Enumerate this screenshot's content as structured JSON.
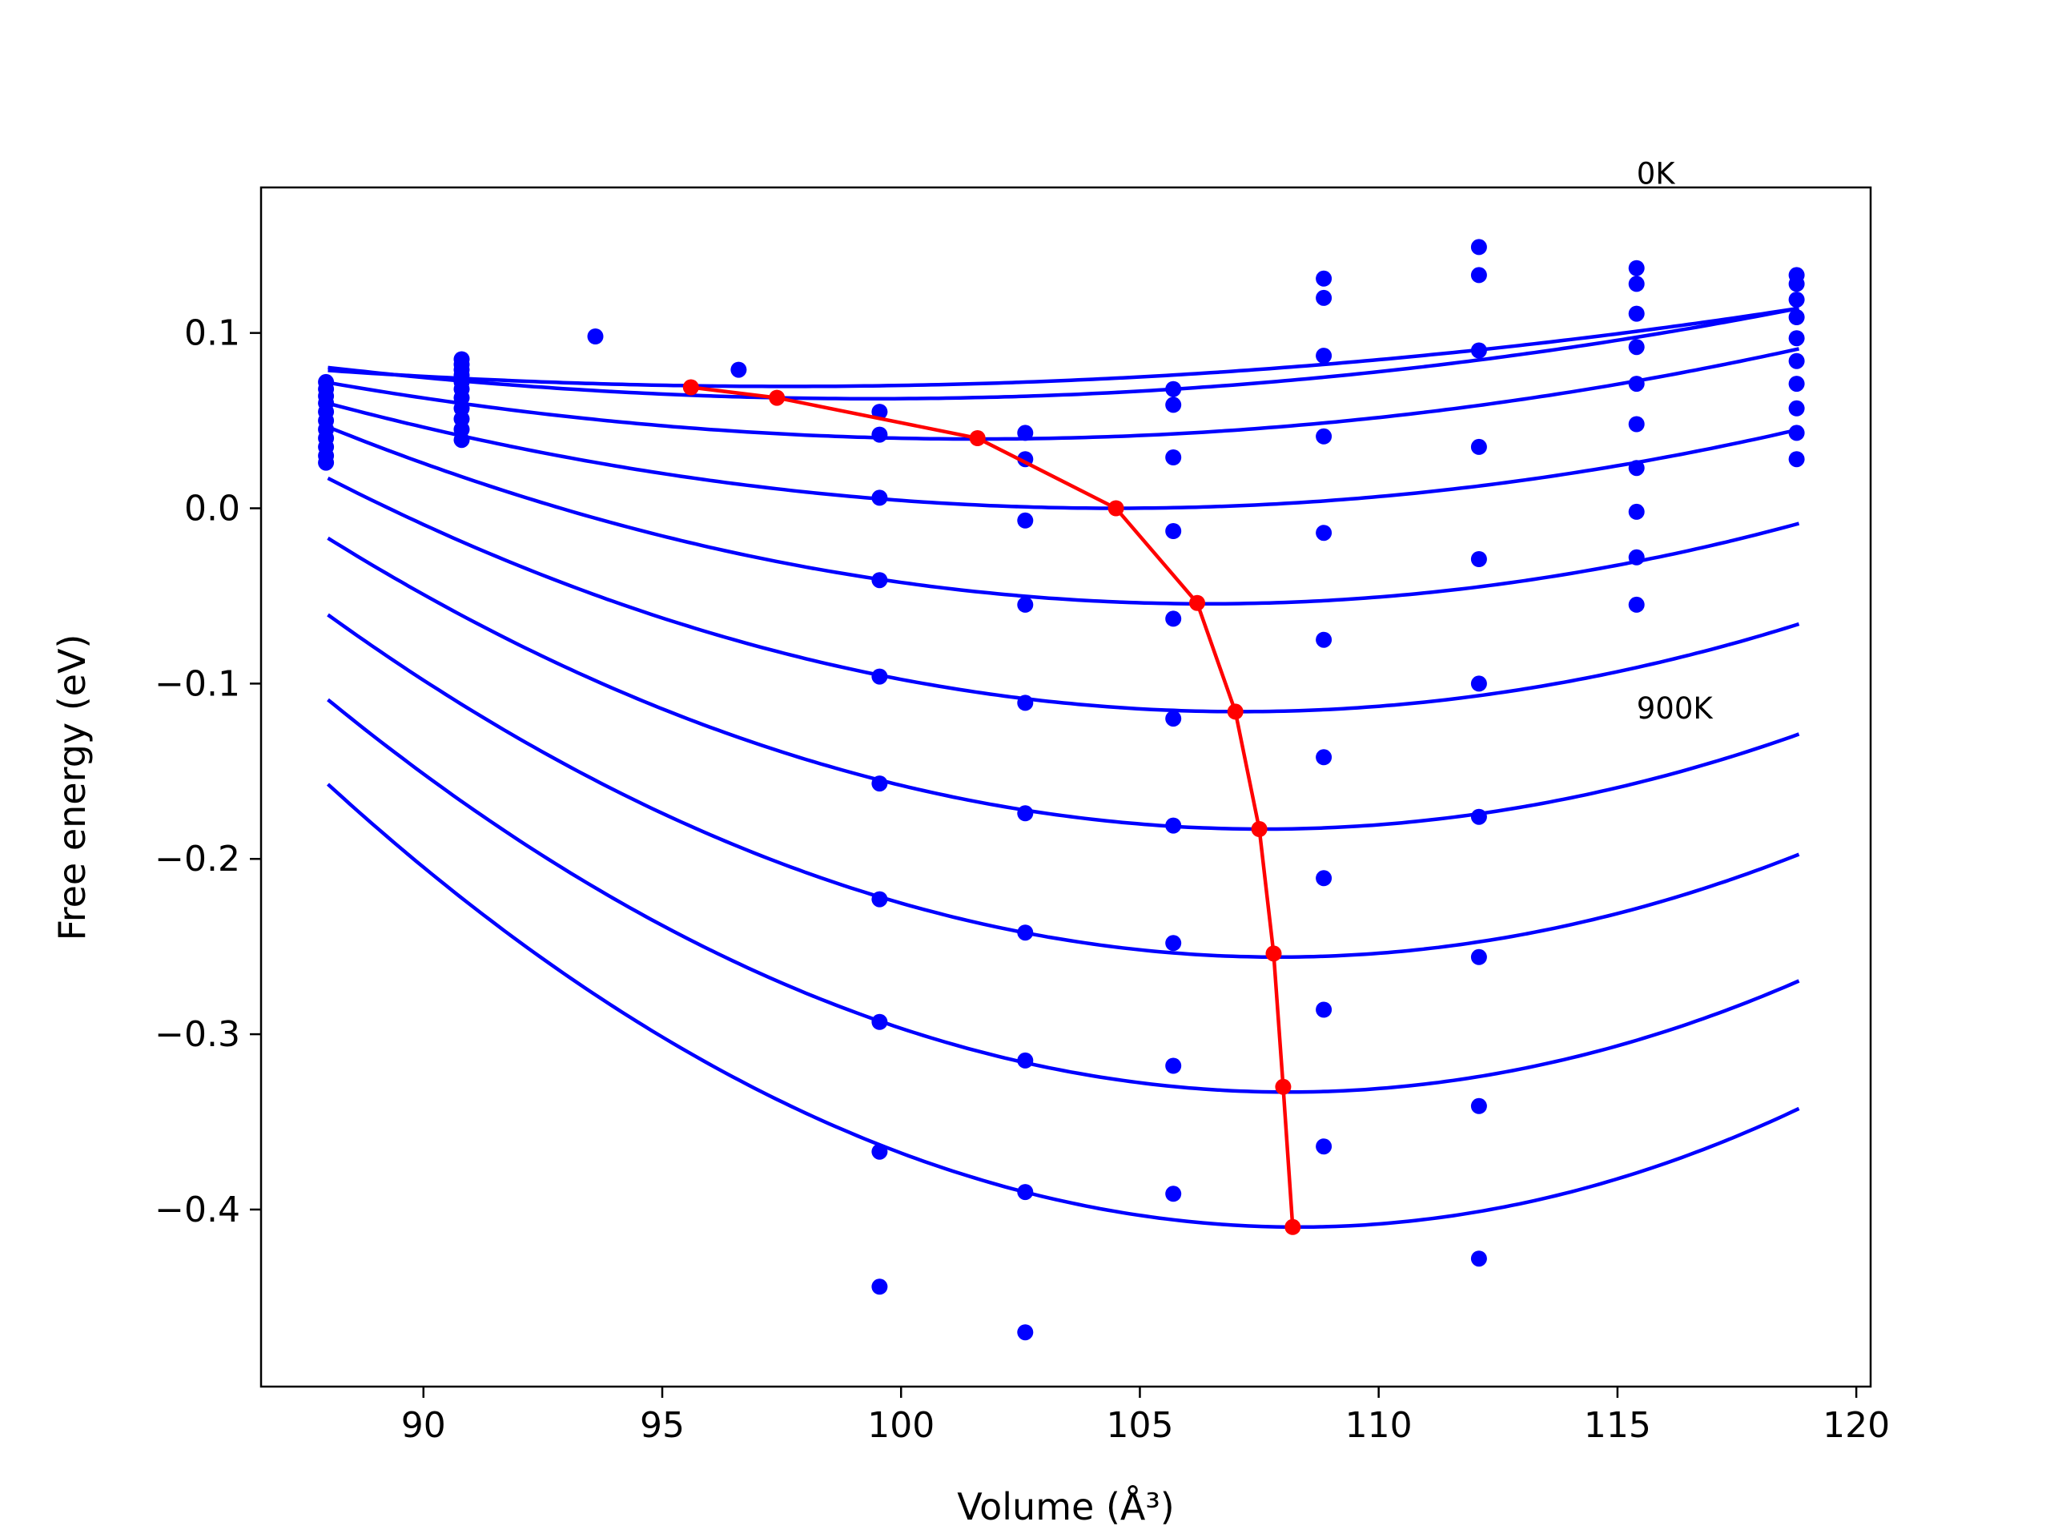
{
  "chart_data": {
    "type": "line",
    "title": "",
    "xlabel": "Volume (Å³)",
    "ylabel": "Free energy (eV)",
    "xlim": [
      86.6,
      120.3
    ],
    "ylim": [
      -0.501,
      0.183
    ],
    "x_ticks": [
      90,
      95,
      100,
      105,
      110,
      115,
      120
    ],
    "x_tick_labels": [
      "90",
      "95",
      "100",
      "105",
      "110",
      "115",
      "120"
    ],
    "y_ticks": [
      -0.4,
      -0.3,
      -0.2,
      -0.1,
      0.0,
      0.1
    ],
    "y_tick_labels": [
      "−0.4",
      "−0.3",
      "−0.2",
      "−0.1",
      "0.0",
      "0.1"
    ],
    "grid": false,
    "annotations": [
      {
        "text": "0K",
        "x": 115.4,
        "y": 0.185
      },
      {
        "text": "900K",
        "x": 115.4,
        "y": -0.12
      }
    ],
    "colors": {
      "fit_curves": "#0000ff",
      "data_points": "#0000ff",
      "equilibrium": "#ff0000"
    },
    "fit_curve_x_range": [
      88.0,
      118.8
    ],
    "fit_curves": [
      {
        "a": 9.92e-05,
        "v0": 97.6,
        "e0": 0.0695
      },
      {
        "a": 0.000137,
        "v0": 99.4,
        "e0": 0.0625
      },
      {
        "a": 0.000174,
        "v0": 101.6,
        "e0": 0.0395
      },
      {
        "a": 0.00022,
        "v0": 104.5,
        "e0": 0.0
      },
      {
        "a": 0.000298,
        "v0": 106.4,
        "e0": -0.0545
      },
      {
        "a": 0.000365,
        "v0": 107.1,
        "e0": -0.116
      },
      {
        "a": 0.000432,
        "v0": 107.6,
        "e0": -0.183
      },
      {
        "a": 0.000493,
        "v0": 107.9,
        "e0": -0.256
      },
      {
        "a": 0.000554,
        "v0": 108.1,
        "e0": -0.333
      },
      {
        "a": 0.000613,
        "v0": 108.3,
        "e0": -0.41
      }
    ],
    "scatter_series": [
      {
        "x": 87.96,
        "y": [
          0.072,
          0.068,
          0.064,
          0.06,
          0.055,
          0.05,
          0.045,
          0.04,
          0.035,
          0.03,
          0.026
        ]
      },
      {
        "x": 90.8,
        "y": [
          0.085,
          0.082,
          0.079,
          0.076,
          0.072,
          0.068,
          0.063,
          0.057,
          0.051,
          0.045,
          0.039
        ]
      },
      {
        "x": 93.6,
        "y": [
          0.098
        ]
      },
      {
        "x": 96.6,
        "y": [
          0.079
        ]
      },
      {
        "x": 99.55,
        "y": [
          0.055,
          0.042,
          0.006,
          -0.041,
          -0.096,
          -0.157,
          -0.223,
          -0.293,
          -0.367,
          -0.444
        ]
      },
      {
        "x": 102.6,
        "y": [
          0.043,
          0.028,
          -0.007,
          -0.055,
          -0.111,
          -0.174,
          -0.242,
          -0.315,
          -0.39,
          -0.47
        ]
      },
      {
        "x": 105.7,
        "y": [
          0.068,
          0.059,
          0.029,
          -0.013,
          -0.063,
          -0.12,
          -0.181,
          -0.248,
          -0.318,
          -0.391
        ]
      },
      {
        "x": 108.85,
        "y": [
          0.131,
          0.12,
          0.087,
          0.041,
          -0.014,
          -0.075,
          -0.142,
          -0.211,
          -0.286,
          -0.364
        ]
      },
      {
        "x": 112.1,
        "y": [
          0.149,
          0.133,
          0.09,
          0.035,
          -0.029,
          -0.1,
          -0.176,
          -0.256,
          -0.341,
          -0.428
        ]
      },
      {
        "x": 115.4,
        "y": [
          0.137,
          0.128,
          0.111,
          0.092,
          0.071,
          0.048,
          0.023,
          -0.002,
          -0.028,
          -0.055
        ]
      },
      {
        "x": 118.75,
        "y": [
          0.133,
          0.128,
          0.119,
          0.109,
          0.097,
          0.084,
          0.071,
          0.057,
          0.043,
          0.028
        ]
      }
    ],
    "equilibrium_line": {
      "x": [
        95.6,
        97.4,
        101.6,
        104.5,
        106.2,
        107.0,
        107.5,
        107.8,
        108.0,
        108.2
      ],
      "y": [
        0.069,
        0.063,
        0.04,
        0.0,
        -0.054,
        -0.116,
        -0.183,
        -0.254,
        -0.33,
        -0.41
      ]
    }
  }
}
